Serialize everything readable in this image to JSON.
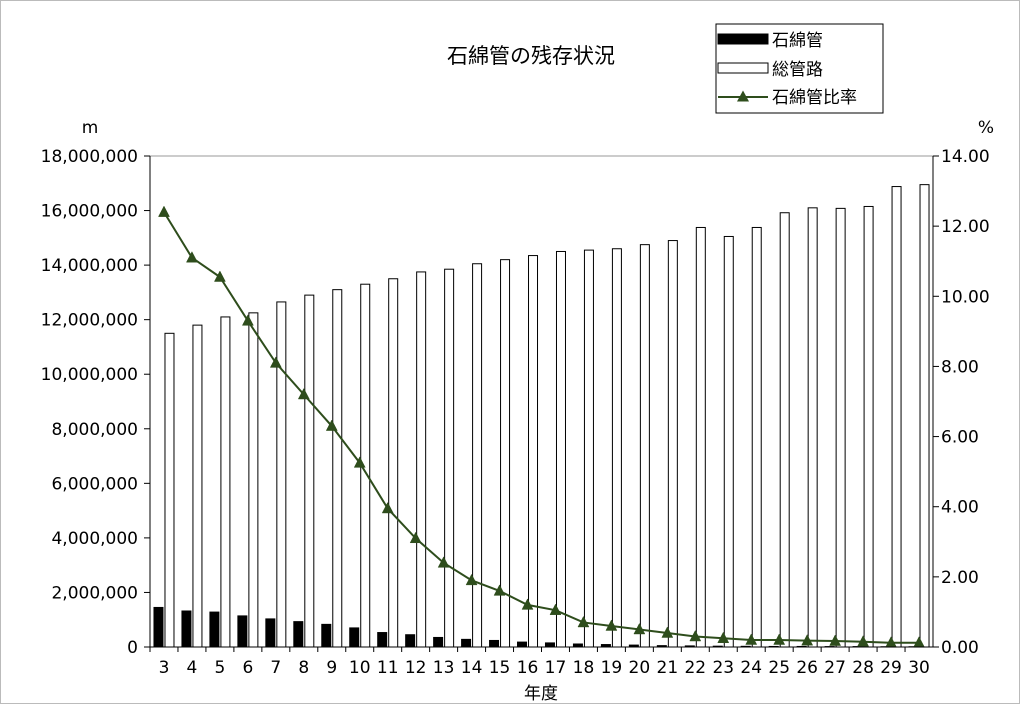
{
  "chart_data": {
    "type": "bar",
    "title": "石綿管の残存状況",
    "xlabel": "年度",
    "ylabel_left_unit": "m",
    "ylabel_right_unit": "%",
    "categories": [
      "3",
      "4",
      "5",
      "6",
      "7",
      "8",
      "9",
      "10",
      "11",
      "12",
      "13",
      "14",
      "15",
      "16",
      "17",
      "18",
      "19",
      "20",
      "21",
      "22",
      "23",
      "24",
      "25",
      "26",
      "27",
      "28",
      "29",
      "30"
    ],
    "ylim_left": [
      0,
      18000000
    ],
    "ylim_right": [
      0,
      14
    ],
    "left_tick_labels": [
      "0",
      "2,000,000",
      "4,000,000",
      "6,000,000",
      "8,000,000",
      "10,000,000",
      "12,000,000",
      "14,000,000",
      "16,000,000",
      "18,000,000"
    ],
    "right_tick_labels": [
      "0.00",
      "2.00",
      "4.00",
      "6.00",
      "8.00",
      "10.00",
      "12.00",
      "14.00"
    ],
    "grid": false,
    "legend_position": "top-right",
    "series": [
      {
        "name": "石綿管",
        "type": "bar",
        "axis": "left",
        "color": "#000000",
        "values": [
          1450000,
          1320000,
          1280000,
          1140000,
          1030000,
          930000,
          830000,
          700000,
          530000,
          450000,
          350000,
          280000,
          240000,
          180000,
          150000,
          110000,
          90000,
          70000,
          50000,
          40000,
          30000,
          25000,
          20000,
          20000,
          15000,
          15000,
          10000,
          10000
        ]
      },
      {
        "name": "総管路",
        "type": "bar",
        "axis": "left",
        "color": "#ffffff",
        "values": [
          11500000,
          11800000,
          12100000,
          12250000,
          12650000,
          12900000,
          13100000,
          13300000,
          13500000,
          13750000,
          13850000,
          14050000,
          14200000,
          14350000,
          14500000,
          14550000,
          14600000,
          14750000,
          14900000,
          15380000,
          15050000,
          15380000,
          15920000,
          16100000,
          16080000,
          16150000,
          16880000,
          16950000
        ]
      },
      {
        "name": "石綿管比率",
        "type": "line",
        "axis": "right",
        "color": "#2e4d1c",
        "marker": "triangle",
        "values": [
          12.4,
          11.1,
          10.55,
          9.3,
          8.1,
          7.2,
          6.3,
          5.25,
          3.95,
          3.1,
          2.4,
          1.9,
          1.6,
          1.2,
          1.05,
          0.7,
          0.6,
          0.5,
          0.4,
          0.3,
          0.25,
          0.2,
          0.2,
          0.18,
          0.17,
          0.15,
          0.12,
          0.12
        ]
      }
    ]
  }
}
